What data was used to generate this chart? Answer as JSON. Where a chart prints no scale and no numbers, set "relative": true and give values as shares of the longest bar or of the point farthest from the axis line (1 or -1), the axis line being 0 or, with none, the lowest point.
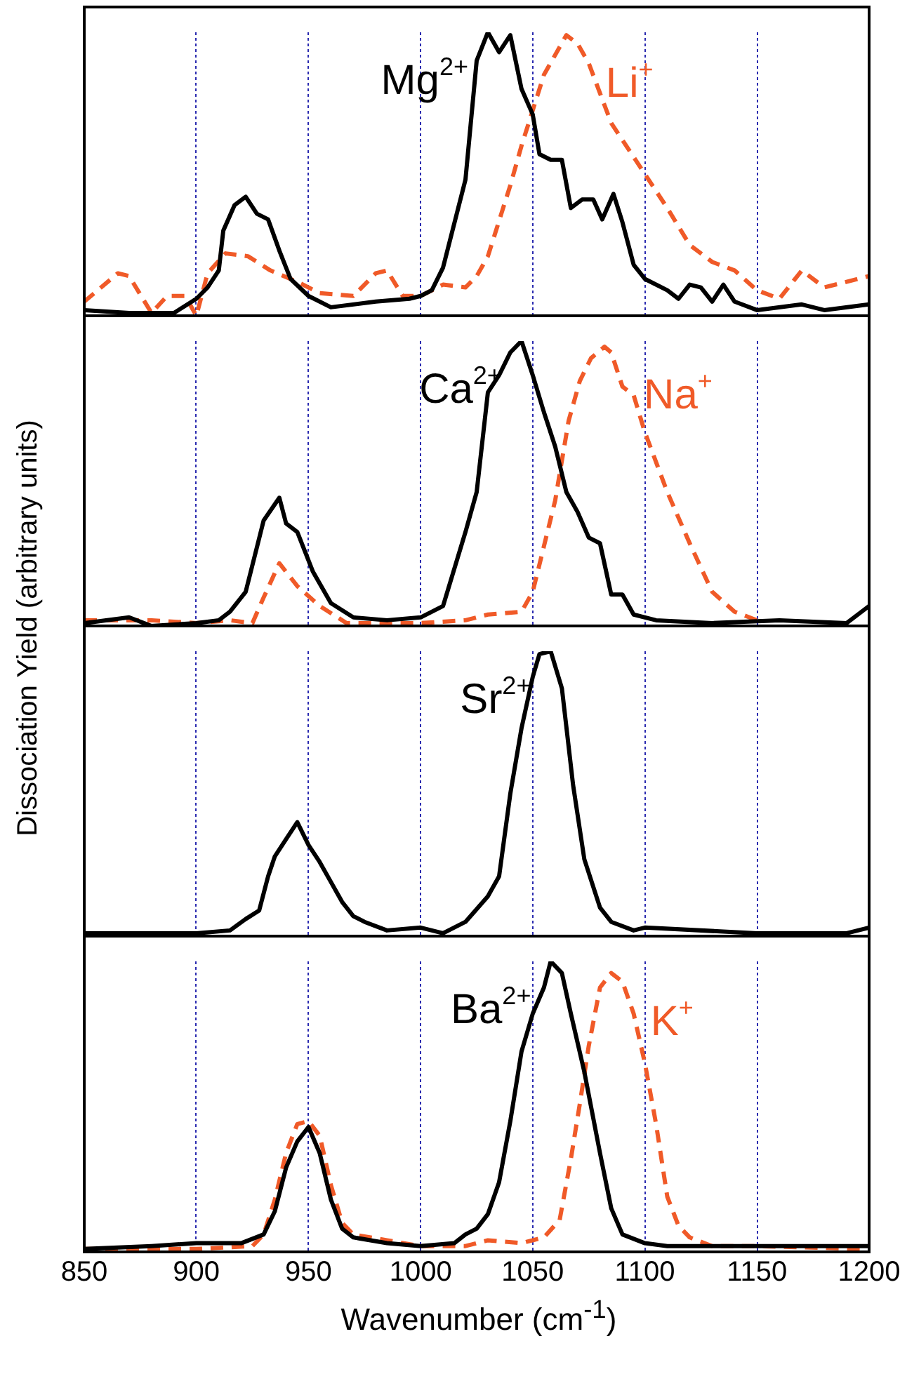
{
  "chart_data": [
    {
      "type": "line",
      "relative": true,
      "ylabel": "Dissociation Yield (arbitrary units)",
      "xlim": [
        850,
        1200
      ],
      "xticks": [
        850,
        900,
        950,
        1000,
        1050,
        1100,
        1150,
        1200
      ],
      "grid": "x",
      "legend": false,
      "tick_labels": false,
      "series": [
        {
          "name": "Mg$^{2+}$",
          "color": "#000000",
          "x": [
            850,
            870,
            890,
            900,
            905,
            910,
            912,
            917,
            922,
            927,
            932,
            937,
            942,
            950,
            960,
            980,
            995,
            1000,
            1005,
            1010,
            1020,
            1025,
            1030,
            1035,
            1040,
            1045,
            1050,
            1053,
            1058,
            1063,
            1067,
            1072,
            1077,
            1081,
            1086,
            1090,
            1095,
            1100,
            1110,
            1115,
            1120,
            1125,
            1130,
            1135,
            1140,
            1150,
            1170,
            1180,
            1200
          ],
          "values": [
            0.02,
            0.01,
            0.01,
            0.06,
            0.1,
            0.16,
            0.3,
            0.39,
            0.42,
            0.36,
            0.34,
            0.23,
            0.13,
            0.07,
            0.03,
            0.05,
            0.06,
            0.07,
            0.09,
            0.17,
            0.48,
            0.9,
            1,
            0.93,
            0.99,
            0.8,
            0.71,
            0.57,
            0.55,
            0.55,
            0.38,
            0.41,
            0.41,
            0.34,
            0.43,
            0.33,
            0.18,
            0.13,
            0.09,
            0.06,
            0.11,
            0.1,
            0.05,
            0.11,
            0.05,
            0.02,
            0.04,
            0.02,
            0.04
          ]
        },
        {
          "name": "Li$^{+}$",
          "color": "#f05a28",
          "line_style": "dashed",
          "x": [
            850,
            865,
            870,
            880,
            887,
            895,
            900,
            905,
            913,
            923,
            933,
            945,
            955,
            970,
            980,
            985,
            992,
            1000,
            1010,
            1020,
            1025,
            1030,
            1040,
            1045,
            1055,
            1065,
            1070,
            1075,
            1085,
            1090,
            1100,
            1110,
            1120,
            1130,
            1140,
            1150,
            1160,
            1170,
            1180,
            1200
          ],
          "values": [
            0.05,
            0.15,
            0.14,
            0.01,
            0.07,
            0.07,
            0,
            0.15,
            0.22,
            0.21,
            0.16,
            0.12,
            0.08,
            0.07,
            0.15,
            0.16,
            0.07,
            0.07,
            0.11,
            0.1,
            0.14,
            0.21,
            0.46,
            0.6,
            0.85,
            0.99,
            0.96,
            0.89,
            0.68,
            0.62,
            0.5,
            0.38,
            0.25,
            0.19,
            0.16,
            0.09,
            0.06,
            0.16,
            0.1,
            0.14
          ]
        }
      ]
    },
    {
      "type": "line",
      "relative": true,
      "xlim": [
        850,
        1200
      ],
      "xticks": [
        850,
        900,
        950,
        1000,
        1050,
        1100,
        1150,
        1200
      ],
      "grid": "x",
      "legend": false,
      "tick_labels": false,
      "series": [
        {
          "name": "Ca$^{2+}$",
          "color": "#000000",
          "x": [
            850,
            870,
            880,
            900,
            910,
            915,
            922,
            930,
            937,
            940,
            945,
            952,
            960,
            970,
            985,
            1000,
            1010,
            1020,
            1025,
            1030,
            1035,
            1040,
            1045,
            1050,
            1055,
            1060,
            1065,
            1070,
            1075,
            1080,
            1085,
            1090,
            1095,
            1105,
            1130,
            1160,
            1190,
            1200
          ],
          "values": [
            0.01,
            0.03,
            0,
            0.01,
            0.02,
            0.05,
            0.12,
            0.37,
            0.45,
            0.36,
            0.33,
            0.19,
            0.08,
            0.03,
            0.02,
            0.03,
            0.07,
            0.33,
            0.47,
            0.82,
            0.88,
            0.96,
            1,
            0.88,
            0.75,
            0.63,
            0.47,
            0.4,
            0.31,
            0.29,
            0.11,
            0.11,
            0.04,
            0.02,
            0.01,
            0.02,
            0.01,
            0.07
          ]
        },
        {
          "name": "Na$^{+}$",
          "color": "#f05a28",
          "line_style": "dashed",
          "x": [
            850,
            880,
            900,
            915,
            925,
            930,
            937,
            945,
            955,
            967,
            980,
            1000,
            1020,
            1030,
            1045,
            1050,
            1060,
            1066,
            1071,
            1076,
            1082,
            1085,
            1090,
            1095,
            1100,
            1110,
            1120,
            1130,
            1140,
            1150
          ],
          "values": [
            0.02,
            0.02,
            0.01,
            0.02,
            0.01,
            0.1,
            0.22,
            0.14,
            0.07,
            0.01,
            0.01,
            0.01,
            0.02,
            0.04,
            0.05,
            0.12,
            0.44,
            0.72,
            0.86,
            0.94,
            0.98,
            0.96,
            0.84,
            0.81,
            0.68,
            0.47,
            0.29,
            0.12,
            0.05,
            0.02
          ]
        }
      ]
    },
    {
      "type": "line",
      "relative": true,
      "xlim": [
        850,
        1200
      ],
      "xticks": [
        850,
        900,
        950,
        1000,
        1050,
        1100,
        1150,
        1200
      ],
      "grid": "x",
      "legend": false,
      "tick_labels": false,
      "series": [
        {
          "name": "Sr$^{2+}$",
          "color": "#000000",
          "x": [
            850,
            900,
            915,
            922,
            928,
            932,
            935,
            940,
            945,
            950,
            955,
            960,
            965,
            970,
            975,
            985,
            1000,
            1010,
            1020,
            1030,
            1035,
            1040,
            1045,
            1050,
            1053,
            1058,
            1063,
            1068,
            1073,
            1080,
            1085,
            1095,
            1100,
            1150,
            1190,
            1200
          ],
          "values": [
            0.01,
            0.01,
            0.02,
            0.06,
            0.09,
            0.21,
            0.28,
            0.34,
            0.4,
            0.32,
            0.26,
            0.19,
            0.12,
            0.07,
            0.05,
            0.02,
            0.03,
            0.01,
            0.05,
            0.14,
            0.21,
            0.5,
            0.73,
            0.91,
            0.99,
            1,
            0.87,
            0.53,
            0.27,
            0.1,
            0.05,
            0.02,
            0.03,
            0.01,
            0.01,
            0.03
          ]
        }
      ]
    },
    {
      "type": "line",
      "relative": true,
      "xlabel": "Wavenumber (cm$^{-1}$)",
      "xlim": [
        850,
        1200
      ],
      "xticks": [
        850,
        900,
        950,
        1000,
        1050,
        1100,
        1150,
        1200
      ],
      "grid": "x",
      "legend": false,
      "tick_labels": "x",
      "series": [
        {
          "name": "Ba$^{2+}$",
          "color": "#000000",
          "x": [
            850,
            880,
            900,
            920,
            930,
            935,
            940,
            945,
            950,
            955,
            960,
            965,
            970,
            985,
            1000,
            1015,
            1020,
            1025,
            1030,
            1035,
            1040,
            1045,
            1050,
            1055,
            1058,
            1063,
            1067,
            1073,
            1080,
            1085,
            1090,
            1100,
            1110,
            1200
          ],
          "values": [
            0.01,
            0.02,
            0.03,
            0.03,
            0.06,
            0.14,
            0.29,
            0.38,
            0.43,
            0.34,
            0.18,
            0.08,
            0.05,
            0.03,
            0.02,
            0.03,
            0.06,
            0.08,
            0.13,
            0.24,
            0.45,
            0.69,
            0.82,
            0.91,
            1,
            0.96,
            0.82,
            0.62,
            0.34,
            0.15,
            0.06,
            0.03,
            0.02,
            0.02
          ]
        },
        {
          "name": "K$^{+}$",
          "color": "#f05a28",
          "line_style": "dashed",
          "x": [
            850,
            900,
            925,
            930,
            935,
            940,
            945,
            950,
            955,
            960,
            965,
            970,
            985,
            1000,
            1020,
            1030,
            1045,
            1055,
            1062,
            1067,
            1071,
            1075,
            1080,
            1085,
            1090,
            1095,
            1100,
            1105,
            1110,
            1115,
            1120,
            1130,
            1150,
            1200
          ],
          "values": [
            0.01,
            0.01,
            0.02,
            0.06,
            0.18,
            0.34,
            0.44,
            0.45,
            0.4,
            0.23,
            0.1,
            0.06,
            0.04,
            0.02,
            0.02,
            0.04,
            0.03,
            0.05,
            0.11,
            0.32,
            0.51,
            0.71,
            0.91,
            0.96,
            0.93,
            0.82,
            0.65,
            0.44,
            0.19,
            0.09,
            0.05,
            0.02,
            0.02,
            0.01
          ]
        }
      ]
    }
  ]
}
